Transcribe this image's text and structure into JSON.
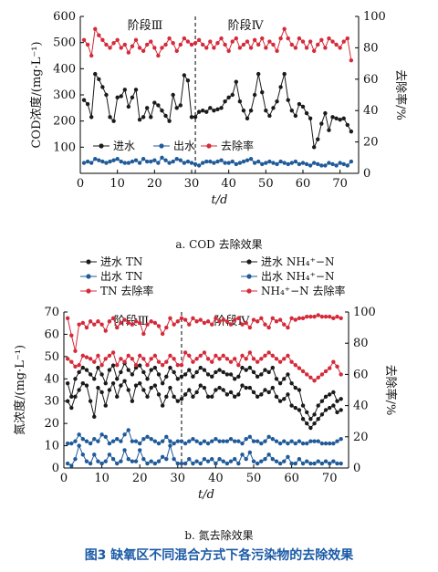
{
  "figure_title": "图3   缺氧区不同混合方式下各污染物的去除效果",
  "chart_data": [
    {
      "type": "line",
      "caption": "a. COD 去除效果",
      "xlabel": "t/d",
      "ylabel": "COD浓度/(mg·L⁻¹)",
      "y2label": "去除率/%",
      "xlim": [
        0,
        75
      ],
      "ylim": [
        0,
        600
      ],
      "y2lim": [
        0,
        100
      ],
      "xticks": [
        0,
        10,
        20,
        30,
        40,
        50,
        60,
        70
      ],
      "yticks": [
        100,
        200,
        300,
        400,
        500,
        600
      ],
      "y2ticks": [
        0,
        20,
        40,
        60,
        80,
        100
      ],
      "phase_line_x": 31,
      "phase_labels": [
        "阶段Ⅲ",
        "阶段Ⅳ"
      ],
      "legend": [
        "进水",
        "出水",
        "去除率"
      ],
      "colors": {
        "influent": "#1a1a1a",
        "effluent": "#1f5a99",
        "rate": "#d42a3a"
      },
      "x": [
        1,
        2,
        3,
        4,
        5,
        6,
        7,
        8,
        9,
        10,
        11,
        12,
        13,
        14,
        15,
        16,
        17,
        18,
        19,
        20,
        21,
        22,
        23,
        24,
        25,
        26,
        27,
        28,
        29,
        30,
        31,
        32,
        33,
        34,
        35,
        36,
        37,
        38,
        39,
        40,
        41,
        42,
        43,
        44,
        45,
        46,
        47,
        48,
        49,
        50,
        51,
        52,
        53,
        54,
        55,
        56,
        57,
        58,
        59,
        60,
        61,
        62,
        63,
        64,
        65,
        66,
        67,
        68,
        69,
        70,
        71,
        72,
        73
      ],
      "series": [
        {
          "name": "进水",
          "axis": "left",
          "values": [
            280,
            265,
            215,
            380,
            360,
            330,
            300,
            215,
            200,
            290,
            295,
            320,
            255,
            290,
            320,
            205,
            215,
            250,
            215,
            270,
            260,
            240,
            220,
            200,
            300,
            250,
            260,
            375,
            355,
            215,
            215,
            235,
            240,
            235,
            250,
            240,
            245,
            250,
            275,
            290,
            300,
            350,
            275,
            240,
            210,
            240,
            300,
            380,
            310,
            240,
            220,
            250,
            275,
            330,
            380,
            280,
            240,
            220,
            265,
            255,
            230,
            210,
            100,
            130,
            190,
            230,
            165,
            215,
            210,
            205,
            210,
            185,
            160
          ]
        },
        {
          "name": "出水",
          "axis": "left",
          "values": [
            40,
            45,
            40,
            55,
            50,
            45,
            40,
            45,
            50,
            55,
            45,
            40,
            40,
            45,
            50,
            40,
            55,
            45,
            45,
            50,
            40,
            60,
            50,
            40,
            45,
            55,
            50,
            40,
            45,
            40,
            35,
            30,
            40,
            45,
            45,
            40,
            45,
            50,
            40,
            40,
            45,
            35,
            40,
            45,
            50,
            55,
            40,
            45,
            35,
            40,
            45,
            40,
            35,
            45,
            40,
            35,
            40,
            45,
            35,
            40,
            35,
            30,
            40,
            35,
            30,
            30,
            40,
            35,
            30,
            40,
            35,
            30,
            45
          ]
        },
        {
          "name": "去除率",
          "axis": "right",
          "values": [
            85,
            82,
            75,
            92,
            88,
            85,
            82,
            80,
            83,
            85,
            80,
            82,
            77,
            81,
            85,
            80,
            78,
            82,
            84,
            80,
            75,
            80,
            82,
            86,
            83,
            78,
            82,
            86,
            84,
            82,
            83,
            85,
            82,
            80,
            84,
            80,
            83,
            86,
            82,
            78,
            84,
            86,
            80,
            82,
            84,
            80,
            85,
            82,
            86,
            80,
            84,
            82,
            78,
            86,
            92,
            86,
            82,
            80,
            86,
            84,
            80,
            84,
            78,
            82,
            85,
            80,
            86,
            84,
            82,
            80,
            84,
            86,
            72
          ]
        }
      ]
    },
    {
      "type": "line",
      "caption": "b. 氮去除效果",
      "xlabel": "t/d",
      "ylabel": "氮浓度/(mg·L⁻¹)",
      "y2label": "去除率/%",
      "xlim": [
        0,
        75
      ],
      "ylim": [
        0,
        70
      ],
      "y2lim": [
        0,
        100
      ],
      "xticks": [
        0,
        10,
        20,
        30,
        40,
        50,
        60,
        70
      ],
      "yticks": [
        0,
        10,
        20,
        30,
        40,
        50,
        60,
        70
      ],
      "y2ticks": [
        0,
        20,
        40,
        60,
        80,
        100
      ],
      "phase_line_x": 31,
      "phase_labels": [
        "阶段Ⅲ",
        "阶段Ⅳ"
      ],
      "legend": [
        "进水 TN",
        "进水 NH₄⁺−N",
        "出水 TN",
        "出水 NH₄⁺−N",
        "TN 去除率",
        "NH₄⁺−N 去除率"
      ],
      "colors": {
        "influent": "#1a1a1a",
        "effluent": "#1f5a99",
        "rate": "#d42a3a"
      },
      "x": [
        1,
        2,
        3,
        4,
        5,
        6,
        7,
        8,
        9,
        10,
        11,
        12,
        13,
        14,
        15,
        16,
        17,
        18,
        19,
        20,
        21,
        22,
        23,
        24,
        25,
        26,
        27,
        28,
        29,
        30,
        31,
        32,
        33,
        34,
        35,
        36,
        37,
        38,
        39,
        40,
        41,
        42,
        43,
        44,
        45,
        46,
        47,
        48,
        49,
        50,
        51,
        52,
        53,
        54,
        55,
        56,
        57,
        58,
        59,
        60,
        61,
        62,
        63,
        64,
        65,
        66,
        67,
        68,
        69,
        70,
        71,
        72,
        73
      ],
      "series": [
        {
          "name": "进水 TN",
          "axis": "left",
          "values": [
            38,
            32,
            40,
            43,
            45,
            44,
            42,
            40,
            45,
            42,
            38,
            44,
            46,
            40,
            43,
            47,
            44,
            42,
            45,
            46,
            43,
            40,
            44,
            45,
            42,
            38,
            41,
            45,
            43,
            40,
            41,
            42,
            44,
            41,
            43,
            45,
            44,
            42,
            41,
            43,
            44,
            43,
            42,
            42,
            40,
            41,
            45,
            44,
            45,
            43,
            41,
            42,
            44,
            43,
            45,
            40,
            38,
            40,
            42,
            38,
            36,
            35,
            28,
            25,
            22,
            24,
            28,
            30,
            32,
            33,
            34,
            30,
            31
          ]
        },
        {
          "name": "进水 NH₄⁺−N",
          "axis": "left",
          "values": [
            30,
            27,
            32,
            35,
            38,
            37,
            30,
            23,
            36,
            34,
            28,
            35,
            38,
            32,
            37,
            39,
            35,
            30,
            37,
            38,
            35,
            32,
            36,
            37,
            33,
            28,
            32,
            36,
            32,
            30,
            31,
            33,
            35,
            32,
            34,
            37,
            36,
            32,
            32,
            35,
            36,
            35,
            33,
            34,
            32,
            33,
            37,
            36,
            36,
            34,
            32,
            33,
            35,
            34,
            36,
            32,
            30,
            31,
            33,
            28,
            27,
            26,
            22,
            20,
            18,
            20,
            22,
            24,
            26,
            27,
            28,
            25,
            26
          ]
        },
        {
          "name": "出水 TN",
          "axis": "left",
          "values": [
            11,
            11,
            12,
            15,
            13,
            12,
            11,
            13,
            12,
            15,
            14,
            11,
            12,
            13,
            12,
            15,
            17,
            12,
            12,
            11,
            13,
            14,
            13,
            12,
            11,
            12,
            14,
            12,
            11,
            12,
            12,
            11,
            12,
            13,
            12,
            11,
            12,
            11,
            12,
            13,
            12,
            12,
            12,
            13,
            12,
            12,
            11,
            13,
            14,
            12,
            12,
            11,
            12,
            14,
            13,
            12,
            11,
            12,
            11,
            12,
            11,
            12,
            11,
            11,
            12,
            12,
            12,
            11,
            11,
            11,
            11,
            12,
            13
          ]
        },
        {
          "name": "出水 NH₄⁺−N",
          "axis": "left",
          "values": [
            2,
            1,
            4,
            10,
            6,
            3,
            2,
            6,
            3,
            2,
            3,
            6,
            4,
            2,
            3,
            8,
            4,
            3,
            3,
            8,
            4,
            2,
            3,
            2,
            3,
            5,
            4,
            10,
            4,
            2,
            2,
            2,
            4,
            2,
            3,
            2,
            4,
            3,
            4,
            2,
            4,
            3,
            2,
            3,
            4,
            2,
            6,
            4,
            7,
            3,
            2,
            3,
            4,
            6,
            4,
            3,
            2,
            3,
            5,
            2,
            2,
            4,
            2,
            3,
            2,
            2,
            3,
            2,
            3,
            2,
            3,
            2,
            2
          ]
        },
        {
          "name": "TN 去除率",
          "axis": "right",
          "values": [
            70,
            68,
            65,
            66,
            72,
            71,
            70,
            68,
            72,
            66,
            70,
            72,
            74,
            66,
            70,
            68,
            72,
            70,
            66,
            72,
            70,
            66,
            70,
            72,
            68,
            66,
            68,
            72,
            70,
            66,
            66,
            74,
            72,
            68,
            70,
            72,
            74,
            70,
            68,
            72,
            70,
            72,
            70,
            68,
            70,
            66,
            72,
            70,
            74,
            70,
            68,
            70,
            72,
            74,
            72,
            70,
            68,
            70,
            72,
            68,
            66,
            64,
            62,
            60,
            58,
            56,
            58,
            60,
            62,
            64,
            68,
            65,
            60
          ]
        },
        {
          "name": "NH₄⁺−N 去除率",
          "axis": "right",
          "values": [
            96,
            85,
            75,
            92,
            93,
            90,
            94,
            92,
            94,
            92,
            88,
            94,
            96,
            90,
            93,
            95,
            93,
            92,
            94,
            93,
            86,
            92,
            94,
            93,
            91,
            86,
            90,
            96,
            92,
            94,
            96,
            95,
            92,
            96,
            94,
            95,
            93,
            94,
            92,
            96,
            94,
            95,
            94,
            92,
            95,
            96,
            92,
            93,
            90,
            95,
            94,
            96,
            92,
            90,
            96,
            94,
            95,
            92,
            90,
            96,
            95,
            96,
            96,
            97,
            97,
            97,
            98,
            97,
            97,
            97,
            96,
            97,
            96
          ]
        }
      ]
    }
  ]
}
